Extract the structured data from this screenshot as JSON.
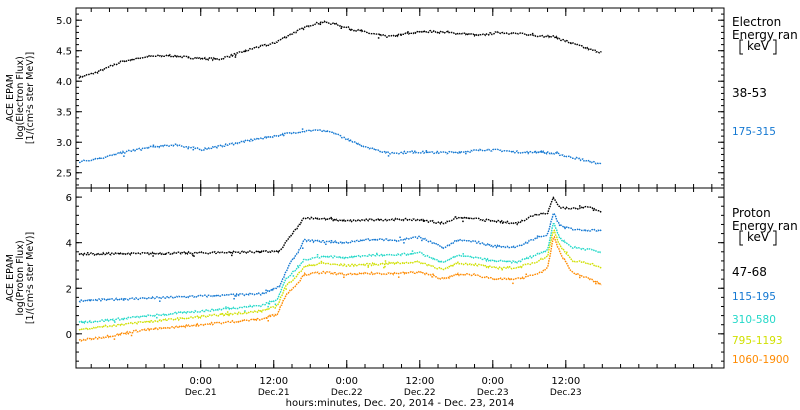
{
  "chart_data": {
    "type": "line",
    "x_axis": {
      "label": "hours:minutes, Dec. 20, 2014 - Dec. 23, 2014",
      "range_hours": [
        -20.5,
        86
      ],
      "ticks": [
        {
          "hours": 0,
          "time": "0:00",
          "date": "Dec.21"
        },
        {
          "hours": 12,
          "time": "12:00",
          "date": "Dec.21"
        },
        {
          "hours": 24,
          "time": "0:00",
          "date": "Dec.22"
        },
        {
          "hours": 36,
          "time": "12:00",
          "date": "Dec.22"
        },
        {
          "hours": 48,
          "time": "0:00",
          "date": "Dec.23"
        },
        {
          "hours": 60,
          "time": "12:00",
          "date": "Dec.23"
        }
      ]
    },
    "panels": [
      {
        "id": "electron",
        "ylabel_lines": [
          "ACE EPAM",
          "log(Electron Flux)",
          "[1/(cm²s ster MeV)]"
        ],
        "ylim": [
          2.25,
          5.2
        ],
        "yticks": [
          2.5,
          3.0,
          3.5,
          4.0,
          4.5,
          5.0
        ],
        "ytick_labels": [
          "2.5",
          "3.0",
          "3.5",
          "4.0",
          "4.5",
          "5.0"
        ],
        "legend_title_lines": [
          "Electron",
          "Energy ran"
        ],
        "legend_unit": "keV",
        "series": [
          {
            "name": "38-53",
            "color": "#000000",
            "points": [
              [
                -20,
                4.06
              ],
              [
                -17,
                4.15
              ],
              [
                -13,
                4.32
              ],
              [
                -9,
                4.4
              ],
              [
                -5,
                4.42
              ],
              [
                -1,
                4.38
              ],
              [
                3,
                4.36
              ],
              [
                6,
                4.45
              ],
              [
                9,
                4.55
              ],
              [
                12,
                4.62
              ],
              [
                15,
                4.78
              ],
              [
                18,
                4.92
              ],
              [
                20,
                4.97
              ],
              [
                22,
                4.94
              ],
              [
                25,
                4.85
              ],
              [
                28,
                4.78
              ],
              [
                31,
                4.73
              ],
              [
                34,
                4.78
              ],
              [
                37,
                4.82
              ],
              [
                40,
                4.8
              ],
              [
                43,
                4.78
              ],
              [
                46,
                4.75
              ],
              [
                49,
                4.8
              ],
              [
                52,
                4.78
              ],
              [
                55,
                4.75
              ],
              [
                58,
                4.73
              ],
              [
                61,
                4.62
              ],
              [
                64,
                4.52
              ],
              [
                66,
                4.47
              ]
            ]
          },
          {
            "name": "175-315",
            "color": "#1478d2",
            "points": [
              [
                -20,
                2.68
              ],
              [
                -16,
                2.75
              ],
              [
                -12,
                2.85
              ],
              [
                -8,
                2.92
              ],
              [
                -4,
                2.96
              ],
              [
                0,
                2.88
              ],
              [
                4,
                2.95
              ],
              [
                8,
                3.03
              ],
              [
                12,
                3.1
              ],
              [
                16,
                3.17
              ],
              [
                19,
                3.2
              ],
              [
                22,
                3.15
              ],
              [
                25,
                3.0
              ],
              [
                28,
                2.9
              ],
              [
                31,
                2.82
              ],
              [
                35,
                2.84
              ],
              [
                38,
                2.83
              ],
              [
                41,
                2.83
              ],
              [
                44,
                2.85
              ],
              [
                47,
                2.88
              ],
              [
                50,
                2.86
              ],
              [
                53,
                2.83
              ],
              [
                56,
                2.84
              ],
              [
                59,
                2.8
              ],
              [
                62,
                2.73
              ],
              [
                65,
                2.66
              ],
              [
                66,
                2.64
              ]
            ]
          }
        ]
      },
      {
        "id": "proton",
        "ylabel_lines": [
          "ACE EPAM",
          "log(Proton Flux)",
          "[1/(cm²s ster MeV)]"
        ],
        "ylim": [
          -1.5,
          6.4
        ],
        "yticks": [
          0,
          2,
          4,
          6
        ],
        "ytick_labels": [
          "0",
          "2",
          "4",
          "6"
        ],
        "legend_title_lines": [
          "Proton",
          "Energy ran"
        ],
        "legend_unit": "keV",
        "series": [
          {
            "name": "47-68",
            "color": "#000000",
            "points": [
              [
                -20,
                3.5
              ],
              [
                -10,
                3.52
              ],
              [
                0,
                3.55
              ],
              [
                10,
                3.6
              ],
              [
                13,
                3.62
              ],
              [
                14.5,
                4.2
              ],
              [
                16,
                4.7
              ],
              [
                17,
                5.1
              ],
              [
                20,
                5.05
              ],
              [
                24,
                4.95
              ],
              [
                28,
                5.0
              ],
              [
                32,
                5.02
              ],
              [
                36,
                5.0
              ],
              [
                40,
                4.85
              ],
              [
                42,
                5.1
              ],
              [
                45,
                5.05
              ],
              [
                48,
                4.95
              ],
              [
                52,
                4.85
              ],
              [
                55,
                5.25
              ],
              [
                57,
                5.3
              ],
              [
                58,
                6.0
              ],
              [
                59,
                5.55
              ],
              [
                61,
                5.5
              ],
              [
                64,
                5.55
              ],
              [
                66,
                5.35
              ]
            ]
          },
          {
            "name": "115-195",
            "color": "#1478d2",
            "points": [
              [
                -20,
                1.45
              ],
              [
                -10,
                1.55
              ],
              [
                0,
                1.65
              ],
              [
                10,
                1.75
              ],
              [
                13,
                2.1
              ],
              [
                14.5,
                3.0
              ],
              [
                16,
                3.6
              ],
              [
                17,
                4.1
              ],
              [
                20,
                4.05
              ],
              [
                24,
                4.0
              ],
              [
                28,
                4.15
              ],
              [
                32,
                4.1
              ],
              [
                36,
                4.25
              ],
              [
                40,
                3.75
              ],
              [
                42,
                4.1
              ],
              [
                45,
                4.05
              ],
              [
                48,
                3.85
              ],
              [
                52,
                3.8
              ],
              [
                55,
                4.2
              ],
              [
                57,
                4.35
              ],
              [
                58,
                5.3
              ],
              [
                59,
                4.75
              ],
              [
                61,
                4.6
              ],
              [
                64,
                4.55
              ],
              [
                66,
                4.55
              ]
            ]
          },
          {
            "name": "310-580",
            "color": "#22d8c8",
            "points": [
              [
                -20,
                0.5
              ],
              [
                -15,
                0.6
              ],
              [
                -10,
                0.75
              ],
              [
                0,
                1.0
              ],
              [
                10,
                1.25
              ],
              [
                12.5,
                1.5
              ],
              [
                14,
                2.4
              ],
              [
                16,
                2.9
              ],
              [
                17,
                3.25
              ],
              [
                20,
                3.4
              ],
              [
                24,
                3.35
              ],
              [
                28,
                3.45
              ],
              [
                32,
                3.45
              ],
              [
                36,
                3.55
              ],
              [
                40,
                3.1
              ],
              [
                42,
                3.45
              ],
              [
                45,
                3.35
              ],
              [
                48,
                3.2
              ],
              [
                52,
                3.15
              ],
              [
                55,
                3.45
              ],
              [
                57,
                3.7
              ],
              [
                58,
                4.9
              ],
              [
                59,
                4.2
              ],
              [
                61,
                3.8
              ],
              [
                64,
                3.7
              ],
              [
                66,
                3.55
              ]
            ]
          },
          {
            "name": "795-1193",
            "color": "#d0e000",
            "points": [
              [
                -20,
                0.2
              ],
              [
                -15,
                0.35
              ],
              [
                -10,
                0.5
              ],
              [
                0,
                0.75
              ],
              [
                10,
                1.0
              ],
              [
                12.5,
                1.2
              ],
              [
                14,
                2.1
              ],
              [
                16,
                2.6
              ],
              [
                17,
                2.95
              ],
              [
                20,
                3.1
              ],
              [
                24,
                3.0
              ],
              [
                28,
                3.05
              ],
              [
                32,
                3.1
              ],
              [
                36,
                3.15
              ],
              [
                40,
                2.8
              ],
              [
                42,
                3.1
              ],
              [
                45,
                3.05
              ],
              [
                48,
                2.9
              ],
              [
                52,
                2.9
              ],
              [
                55,
                3.15
              ],
              [
                57,
                3.4
              ],
              [
                58,
                4.6
              ],
              [
                59,
                3.9
              ],
              [
                61,
                3.2
              ],
              [
                64,
                3.1
              ],
              [
                66,
                2.85
              ]
            ]
          },
          {
            "name": "1060-1900",
            "color": "#ff8a00",
            "points": [
              [
                -20,
                -0.3
              ],
              [
                -15,
                -0.1
              ],
              [
                -10,
                0.15
              ],
              [
                0,
                0.4
              ],
              [
                10,
                0.65
              ],
              [
                12.5,
                0.85
              ],
              [
                14,
                1.7
              ],
              [
                16,
                2.25
              ],
              [
                17,
                2.6
              ],
              [
                20,
                2.7
              ],
              [
                24,
                2.6
              ],
              [
                28,
                2.65
              ],
              [
                32,
                2.65
              ],
              [
                36,
                2.7
              ],
              [
                40,
                2.4
              ],
              [
                42,
                2.6
              ],
              [
                45,
                2.6
              ],
              [
                48,
                2.4
              ],
              [
                52,
                2.4
              ],
              [
                55,
                2.6
              ],
              [
                57,
                2.85
              ],
              [
                58,
                4.3
              ],
              [
                59,
                3.6
              ],
              [
                61,
                2.7
              ],
              [
                64,
                2.4
              ],
              [
                66,
                2.15
              ]
            ]
          }
        ]
      }
    ]
  }
}
